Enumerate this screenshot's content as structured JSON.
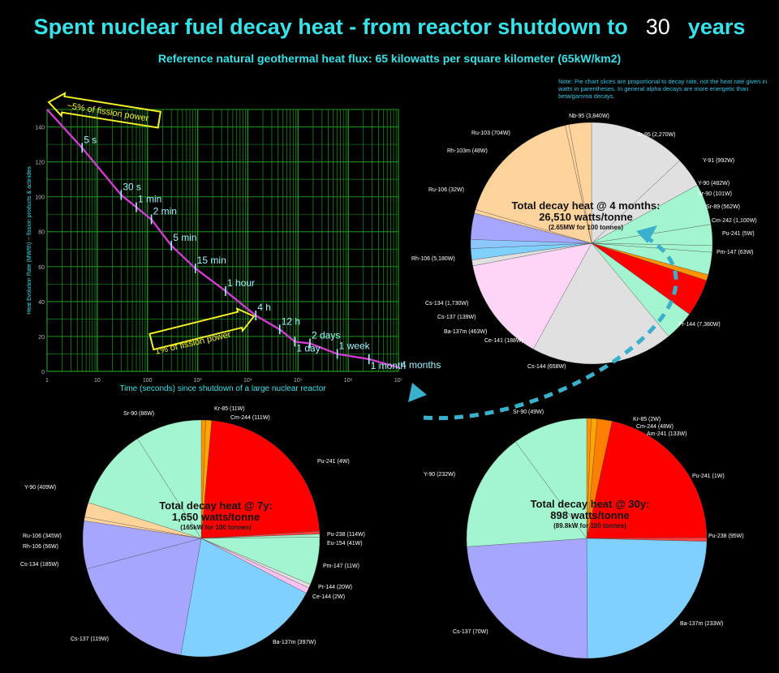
{
  "header": {
    "title_main": "Spent nuclear fuel decay heat - from reactor shutdown to",
    "title_years_value": "30",
    "title_years_unit": "years",
    "subtitle": "Reference natural geothermal heat flux: 65 kilowatts per square kilometer (65kW/km2)",
    "note": "Note: Pie chart slices are proportional to decay rate, not the heat rate given in watts in parentheses.  In general alpha decays are more energetic than beta/gamma decays."
  },
  "colors": {
    "title": "#38e2e9",
    "grid": "#1f9a1f",
    "curve": "#d23cd2",
    "milestone": "#9ff5ff",
    "annotation": "#f2ee2a",
    "arrow": "#3bb0cc"
  },
  "annotations": {
    "five_pct": "~5% of fission power",
    "one_pct": "1% of fission power",
    "four_months": "4 months"
  },
  "chart_data": [
    {
      "type": "line",
      "xscale": "log",
      "xlabel": "Time (seconds) since shutdown of a large nuclear reactor",
      "ylabel": "Heat Evolution Rate (MW/th) -- fission products & actinides",
      "xlim": [
        1,
        10000000
      ],
      "ylim": [
        0,
        150
      ],
      "x_tick_labels": [
        "1",
        "10",
        "100",
        "10³",
        "10⁴",
        "10⁵",
        "10⁶",
        "10⁷"
      ],
      "y_tick_labels": [
        "0",
        "20",
        "40",
        "60",
        "80",
        "100",
        "120",
        "140"
      ],
      "series": [
        {
          "x": [
            1,
            5,
            30,
            60,
            120,
            300,
            900,
            3600,
            14400,
            43200,
            86400,
            172800,
            604800,
            2592000,
            10368000
          ],
          "y": [
            150,
            128,
            101,
            94,
            87,
            72,
            59,
            46,
            32,
            24,
            17,
            16,
            10,
            7,
            2
          ]
        }
      ],
      "milestones": [
        {
          "label": "5 s",
          "x": 5,
          "y": 128
        },
        {
          "label": "30 s",
          "x": 30,
          "y": 101
        },
        {
          "label": "1 min",
          "x": 60,
          "y": 94
        },
        {
          "label": "2 min",
          "x": 120,
          "y": 87
        },
        {
          "label": "5 min",
          "x": 300,
          "y": 72
        },
        {
          "label": "15 min",
          "x": 900,
          "y": 59
        },
        {
          "label": "1 hour",
          "x": 3600,
          "y": 46
        },
        {
          "label": "4 h",
          "x": 14400,
          "y": 32
        },
        {
          "label": "12 h",
          "x": 43200,
          "y": 24
        },
        {
          "label": "1 day",
          "x": 86400,
          "y": 17
        },
        {
          "label": "2 days",
          "x": 172800,
          "y": 16
        },
        {
          "label": "1 week",
          "x": 604800,
          "y": 10
        },
        {
          "label": "1 month",
          "x": 2592000,
          "y": 7
        }
      ]
    },
    {
      "type": "pie",
      "name": "4 months",
      "center_title": "Total decay heat @ 4 months:",
      "center_value": "26,510 watts/tonne",
      "center_note": "(2.65MW for 100 tonnes)",
      "slices": [
        {
          "label": "Nb-95 (3,840W)",
          "value": 13.0,
          "color": "#e0e0e0"
        },
        {
          "label": "Zr-95 (2,270W)",
          "value": 4.0,
          "color": "#e0e0e0"
        },
        {
          "label": "Y-91 (992W)",
          "value": 5.5,
          "color": "#a3f5cf"
        },
        {
          "label": "Y-90 (482W)",
          "value": 2.8,
          "color": "#a3f5cf"
        },
        {
          "label": "Sr-90 (101W)",
          "value": 0.9,
          "color": "#a3f5cf"
        },
        {
          "label": "Sr-89 (562W)",
          "value": 3.0,
          "color": "#a3f5cf"
        },
        {
          "label": "Cm-242 (1,100W)",
          "value": 0.8,
          "color": "#ff9400"
        },
        {
          "label": "Pu-241 (5W)",
          "value": 5.0,
          "color": "#ff0000"
        },
        {
          "label": "Pm-147 (63W)",
          "value": 4.0,
          "color": "#a3f5cf"
        },
        {
          "label": "Pr-144 (7,380W)",
          "value": 19.0,
          "color": "#e0e0e0"
        },
        {
          "label": "Cs-144 (658W)",
          "value": 14.0,
          "color": "#ffd5f7"
        },
        {
          "label": "Ce-141 (188W)",
          "value": 0.8,
          "color": "#e0e0e0"
        },
        {
          "label": "Ba-137m (463W)",
          "value": 1.5,
          "color": "#7fd0ff"
        },
        {
          "label": "Cs-137 (139W)",
          "value": 1.2,
          "color": "#8ec7ff"
        },
        {
          "label": "Cs-134 (1,730W)",
          "value": 3.5,
          "color": "#a6a6ff"
        },
        {
          "label": "Rh-106 (5,180W)",
          "value": 0.5,
          "color": "#ffd39c"
        },
        {
          "label": "Ru-106 (32W)",
          "value": 17.0,
          "color": "#ffd39c"
        },
        {
          "label": "Rh-103m (48W)",
          "value": 0.5,
          "color": "#ffd39c"
        },
        {
          "label": "Ru-103 (704W)",
          "value": 3.0,
          "color": "#ffd39c"
        }
      ]
    },
    {
      "type": "pie",
      "name": "7y",
      "center_title": "Total decay heat @ 7y:",
      "center_value": "1,650 watts/tonne",
      "center_note": "(165kW for 100 tonnes)",
      "slices": [
        {
          "label": "Kr-85 (11W)",
          "value": 0.6,
          "color": "#ff9400"
        },
        {
          "label": "Cm-244 (111W)",
          "value": 0.8,
          "color": "#ffa500"
        },
        {
          "label": "Pu-241 (4W)",
          "value": 22.5,
          "color": "#ff0000"
        },
        {
          "label": "Pu-238 (114W)",
          "value": 0.4,
          "color": "#ff4040"
        },
        {
          "label": "Eu-154 (41W)",
          "value": 0.4,
          "color": "#a3f5cf"
        },
        {
          "label": "Pm-147 (11W)",
          "value": 6.5,
          "color": "#a3f5cf"
        },
        {
          "label": "Pr-144 (20W)",
          "value": 0.5,
          "color": "#e0e0e0"
        },
        {
          "label": "Ce-144 (2W)",
          "value": 0.8,
          "color": "#ffc0f0"
        },
        {
          "label": "Ba-137m (397W)",
          "value": 20.0,
          "color": "#7fd0ff"
        },
        {
          "label": "Cs-137 (119W)",
          "value": 18.0,
          "color": "#a6a6ff"
        },
        {
          "label": "Cs-134 (185W)",
          "value": 6.5,
          "color": "#a6a6ff"
        },
        {
          "label": "Rh-106 (56W)",
          "value": 0.5,
          "color": "#ffd39c"
        },
        {
          "label": "Ru-106 (345W)",
          "value": 2.0,
          "color": "#ffd39c"
        },
        {
          "label": "Y-90 (409W)",
          "value": 11.0,
          "color": "#a3f5cf"
        },
        {
          "label": "Sr-90 (86W)",
          "value": 9.0,
          "color": "#a3f5cf"
        }
      ]
    },
    {
      "type": "pie",
      "name": "30y",
      "center_title": "Total decay heat @ 30y:",
      "center_value": "898 watts/tonne",
      "center_note": "(89.8kW for 100 tonnes)",
      "slices": [
        {
          "label": "Kr-85 (2W)",
          "value": 0.6,
          "color": "#ff9400"
        },
        {
          "label": "Cm-244 (48W)",
          "value": 0.8,
          "color": "#ffa500"
        },
        {
          "label": "Am-241 (133W)",
          "value": 2.0,
          "color": "#ff8000"
        },
        {
          "label": "Pu-241 (1W)",
          "value": 21.5,
          "color": "#ff0000"
        },
        {
          "label": "Pu-238 (95W)",
          "value": 0.5,
          "color": "#ff4040"
        },
        {
          "label": "Ba-137m (233W)",
          "value": 24.5,
          "color": "#7fd0ff"
        },
        {
          "label": "Cs-137 (70W)",
          "value": 24.0,
          "color": "#a6a6ff"
        },
        {
          "label": "Y-90 (232W)",
          "value": 16.0,
          "color": "#a3f5cf"
        },
        {
          "label": "Sr-90 (49W)",
          "value": 10.1,
          "color": "#a3f5cf"
        }
      ]
    }
  ]
}
